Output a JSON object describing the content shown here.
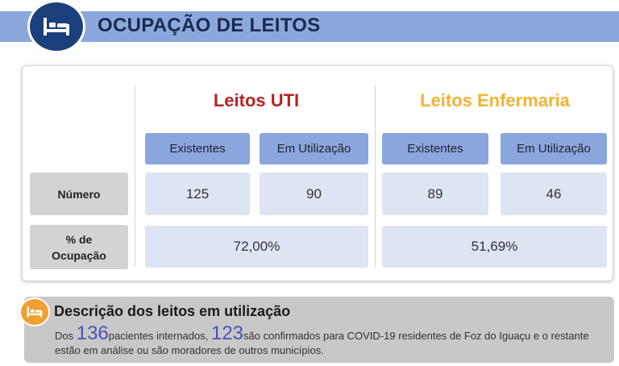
{
  "header": {
    "title": "OCUPAÇÃO DE LEITOS",
    "icon": "bed-icon"
  },
  "uti": {
    "title": "Leitos UTI",
    "existentes_label": "Existentes",
    "em_utilizacao_label": "Em Utilização",
    "existentes": "125",
    "em_utilizacao": "90",
    "ocupacao": "72,00%"
  },
  "enfermaria": {
    "title": "Leitos Enfermaria",
    "existentes_label": "Existentes",
    "em_utilizacao_label": "Em Utilização",
    "existentes": "89",
    "em_utilizacao": "46",
    "ocupacao": "51,69%"
  },
  "rows": {
    "numero": "Número",
    "ocupacao_line1": "% de",
    "ocupacao_line2": "Ocupação"
  },
  "descricao": {
    "title": "Descrição dos leitos em utilização",
    "prefix": "Dos ",
    "internados": "136",
    "mid": "pacientes internados, ",
    "confirmados": "123",
    "suffix": "são confirmados para COVID-19 residentes de Foz do Iguaçu e o restante estão em análise ou são moradores de outros municípios.",
    "icon": "bed-icon"
  },
  "colors": {
    "uti_title": "#b52325",
    "enfermaria_title": "#f2b233",
    "header_circle": "#1b3f7c",
    "header_bar": "#8aa8dc"
  }
}
